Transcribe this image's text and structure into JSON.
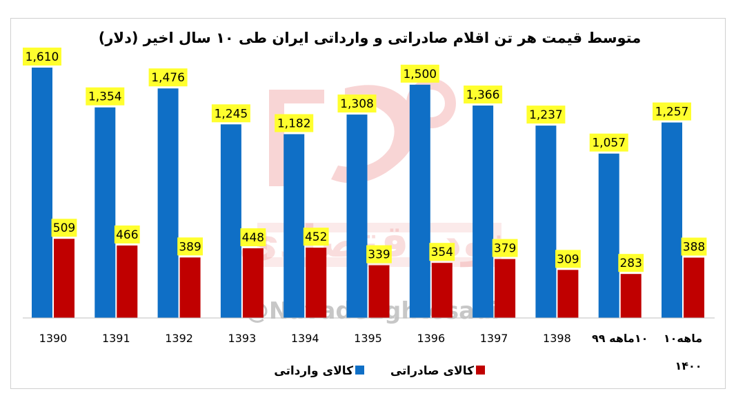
{
  "colors": {
    "imports": "#0f6fc6",
    "exports": "#c00000",
    "label_bg": "#ffff2e",
    "axis": "#bfbfbf",
    "watermark": "#e86a6a"
  },
  "watermark": {
    "handle": "@NavadeEghtesadi",
    "brand": "نود اقتصادی"
  },
  "chart_data": {
    "type": "bar",
    "title": "متوسط قیمت هر تن اقلام صادراتی و وارداتی ایران طی ۱۰ سال اخیر (دلار)",
    "categories": [
      "1390",
      "1391",
      "1392",
      "1393",
      "1394",
      "1395",
      "1396",
      "1397",
      "1398",
      "۱۰ماهه ۹۹",
      "۱۰ماهه ۱۴۰۰"
    ],
    "series": [
      {
        "name": "کالای وارداتی",
        "values": [
          1610,
          1354,
          1476,
          1245,
          1182,
          1308,
          1500,
          1366,
          1237,
          1057,
          1257
        ],
        "labels": [
          "1,610",
          "1,354",
          "1,476",
          "1,245",
          "1,182",
          "1,308",
          "1,500",
          "1,366",
          "1,237",
          "1,057",
          "1,257"
        ]
      },
      {
        "name": "کالای صادراتی",
        "values": [
          509,
          466,
          389,
          448,
          452,
          339,
          354,
          379,
          309,
          283,
          388
        ],
        "labels": [
          "509",
          "466",
          "389",
          "448",
          "452",
          "339",
          "354",
          "379",
          "309",
          "283",
          "388"
        ]
      }
    ],
    "ylim": [
      0,
      1610
    ],
    "grid": false,
    "legend": "bottom"
  }
}
